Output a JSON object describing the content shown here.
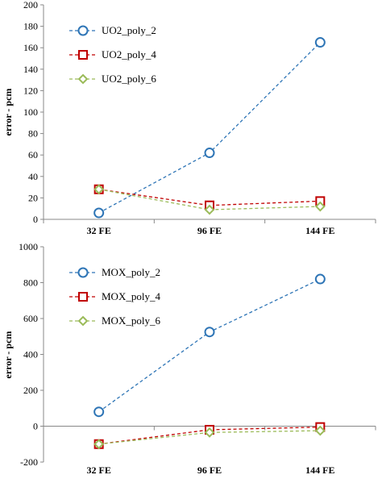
{
  "chart_data": [
    {
      "type": "line",
      "categories": [
        "32 FE",
        "96 FE",
        "144 FE"
      ],
      "ylabel": "error - pcm",
      "ylim": [
        0,
        200
      ],
      "yticks": [
        0,
        20,
        40,
        60,
        80,
        100,
        120,
        140,
        160,
        180,
        200
      ],
      "grid": false,
      "legend_position": "top-left",
      "series": [
        {
          "name": "UO2_poly_2",
          "values": [
            6,
            62,
            165
          ],
          "color": "#2e75b6",
          "marker": "circle"
        },
        {
          "name": "UO2_poly_4",
          "values": [
            28,
            13,
            17
          ],
          "color": "#c00000",
          "marker": "square"
        },
        {
          "name": "UO2_poly_6",
          "values": [
            28,
            9,
            12
          ],
          "color": "#9bbb59",
          "marker": "diamond"
        }
      ]
    },
    {
      "type": "line",
      "categories": [
        "32 FE",
        "96 FE",
        "144 FE"
      ],
      "ylabel": "error - pcm",
      "ylim": [
        -200,
        1000
      ],
      "yticks": [
        -200,
        0,
        200,
        400,
        600,
        800,
        1000
      ],
      "grid": false,
      "legend_position": "top-left",
      "series": [
        {
          "name": "MOX_poly_2",
          "values": [
            80,
            525,
            820
          ],
          "color": "#2e75b6",
          "marker": "circle"
        },
        {
          "name": "MOX_poly_4",
          "values": [
            -100,
            -20,
            -5
          ],
          "color": "#c00000",
          "marker": "square"
        },
        {
          "name": "MOX_poly_6",
          "values": [
            -100,
            -35,
            -25
          ],
          "color": "#9bbb59",
          "marker": "diamond"
        }
      ]
    }
  ]
}
